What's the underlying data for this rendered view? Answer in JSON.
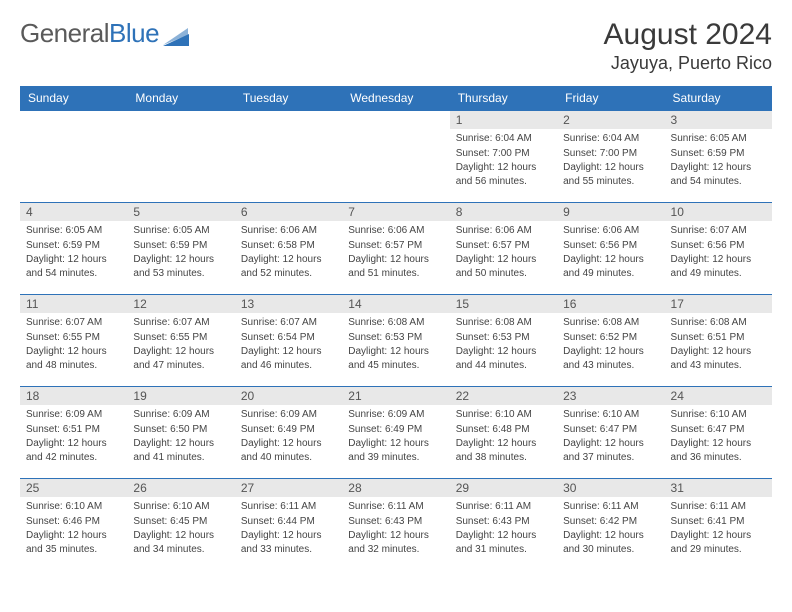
{
  "logo": {
    "part1": "General",
    "part2": "Blue"
  },
  "title": "August 2024",
  "location": "Jayuya, Puerto Rico",
  "headers": [
    "Sunday",
    "Monday",
    "Tuesday",
    "Wednesday",
    "Thursday",
    "Friday",
    "Saturday"
  ],
  "colors": {
    "header_bg": "#2e72b8",
    "header_text": "#ffffff",
    "daynum_bg": "#e8e8e8",
    "row_border": "#2e72b8",
    "logo_gray": "#5a5a5a",
    "logo_blue": "#2e72b8",
    "text": "#444444"
  },
  "weeks": [
    [
      {
        "n": "",
        "sr": "",
        "ss": "",
        "dl": ""
      },
      {
        "n": "",
        "sr": "",
        "ss": "",
        "dl": ""
      },
      {
        "n": "",
        "sr": "",
        "ss": "",
        "dl": ""
      },
      {
        "n": "",
        "sr": "",
        "ss": "",
        "dl": ""
      },
      {
        "n": "1",
        "sr": "Sunrise: 6:04 AM",
        "ss": "Sunset: 7:00 PM",
        "dl": "Daylight: 12 hours and 56 minutes."
      },
      {
        "n": "2",
        "sr": "Sunrise: 6:04 AM",
        "ss": "Sunset: 7:00 PM",
        "dl": "Daylight: 12 hours and 55 minutes."
      },
      {
        "n": "3",
        "sr": "Sunrise: 6:05 AM",
        "ss": "Sunset: 6:59 PM",
        "dl": "Daylight: 12 hours and 54 minutes."
      }
    ],
    [
      {
        "n": "4",
        "sr": "Sunrise: 6:05 AM",
        "ss": "Sunset: 6:59 PM",
        "dl": "Daylight: 12 hours and 54 minutes."
      },
      {
        "n": "5",
        "sr": "Sunrise: 6:05 AM",
        "ss": "Sunset: 6:59 PM",
        "dl": "Daylight: 12 hours and 53 minutes."
      },
      {
        "n": "6",
        "sr": "Sunrise: 6:06 AM",
        "ss": "Sunset: 6:58 PM",
        "dl": "Daylight: 12 hours and 52 minutes."
      },
      {
        "n": "7",
        "sr": "Sunrise: 6:06 AM",
        "ss": "Sunset: 6:57 PM",
        "dl": "Daylight: 12 hours and 51 minutes."
      },
      {
        "n": "8",
        "sr": "Sunrise: 6:06 AM",
        "ss": "Sunset: 6:57 PM",
        "dl": "Daylight: 12 hours and 50 minutes."
      },
      {
        "n": "9",
        "sr": "Sunrise: 6:06 AM",
        "ss": "Sunset: 6:56 PM",
        "dl": "Daylight: 12 hours and 49 minutes."
      },
      {
        "n": "10",
        "sr": "Sunrise: 6:07 AM",
        "ss": "Sunset: 6:56 PM",
        "dl": "Daylight: 12 hours and 49 minutes."
      }
    ],
    [
      {
        "n": "11",
        "sr": "Sunrise: 6:07 AM",
        "ss": "Sunset: 6:55 PM",
        "dl": "Daylight: 12 hours and 48 minutes."
      },
      {
        "n": "12",
        "sr": "Sunrise: 6:07 AM",
        "ss": "Sunset: 6:55 PM",
        "dl": "Daylight: 12 hours and 47 minutes."
      },
      {
        "n": "13",
        "sr": "Sunrise: 6:07 AM",
        "ss": "Sunset: 6:54 PM",
        "dl": "Daylight: 12 hours and 46 minutes."
      },
      {
        "n": "14",
        "sr": "Sunrise: 6:08 AM",
        "ss": "Sunset: 6:53 PM",
        "dl": "Daylight: 12 hours and 45 minutes."
      },
      {
        "n": "15",
        "sr": "Sunrise: 6:08 AM",
        "ss": "Sunset: 6:53 PM",
        "dl": "Daylight: 12 hours and 44 minutes."
      },
      {
        "n": "16",
        "sr": "Sunrise: 6:08 AM",
        "ss": "Sunset: 6:52 PM",
        "dl": "Daylight: 12 hours and 43 minutes."
      },
      {
        "n": "17",
        "sr": "Sunrise: 6:08 AM",
        "ss": "Sunset: 6:51 PM",
        "dl": "Daylight: 12 hours and 43 minutes."
      }
    ],
    [
      {
        "n": "18",
        "sr": "Sunrise: 6:09 AM",
        "ss": "Sunset: 6:51 PM",
        "dl": "Daylight: 12 hours and 42 minutes."
      },
      {
        "n": "19",
        "sr": "Sunrise: 6:09 AM",
        "ss": "Sunset: 6:50 PM",
        "dl": "Daylight: 12 hours and 41 minutes."
      },
      {
        "n": "20",
        "sr": "Sunrise: 6:09 AM",
        "ss": "Sunset: 6:49 PM",
        "dl": "Daylight: 12 hours and 40 minutes."
      },
      {
        "n": "21",
        "sr": "Sunrise: 6:09 AM",
        "ss": "Sunset: 6:49 PM",
        "dl": "Daylight: 12 hours and 39 minutes."
      },
      {
        "n": "22",
        "sr": "Sunrise: 6:10 AM",
        "ss": "Sunset: 6:48 PM",
        "dl": "Daylight: 12 hours and 38 minutes."
      },
      {
        "n": "23",
        "sr": "Sunrise: 6:10 AM",
        "ss": "Sunset: 6:47 PM",
        "dl": "Daylight: 12 hours and 37 minutes."
      },
      {
        "n": "24",
        "sr": "Sunrise: 6:10 AM",
        "ss": "Sunset: 6:47 PM",
        "dl": "Daylight: 12 hours and 36 minutes."
      }
    ],
    [
      {
        "n": "25",
        "sr": "Sunrise: 6:10 AM",
        "ss": "Sunset: 6:46 PM",
        "dl": "Daylight: 12 hours and 35 minutes."
      },
      {
        "n": "26",
        "sr": "Sunrise: 6:10 AM",
        "ss": "Sunset: 6:45 PM",
        "dl": "Daylight: 12 hours and 34 minutes."
      },
      {
        "n": "27",
        "sr": "Sunrise: 6:11 AM",
        "ss": "Sunset: 6:44 PM",
        "dl": "Daylight: 12 hours and 33 minutes."
      },
      {
        "n": "28",
        "sr": "Sunrise: 6:11 AM",
        "ss": "Sunset: 6:43 PM",
        "dl": "Daylight: 12 hours and 32 minutes."
      },
      {
        "n": "29",
        "sr": "Sunrise: 6:11 AM",
        "ss": "Sunset: 6:43 PM",
        "dl": "Daylight: 12 hours and 31 minutes."
      },
      {
        "n": "30",
        "sr": "Sunrise: 6:11 AM",
        "ss": "Sunset: 6:42 PM",
        "dl": "Daylight: 12 hours and 30 minutes."
      },
      {
        "n": "31",
        "sr": "Sunrise: 6:11 AM",
        "ss": "Sunset: 6:41 PM",
        "dl": "Daylight: 12 hours and 29 minutes."
      }
    ]
  ]
}
